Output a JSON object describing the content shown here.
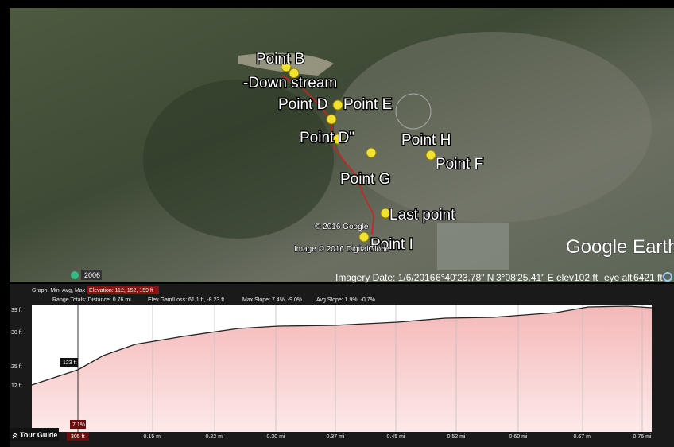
{
  "map": {
    "labels": [
      "Point B",
      "-Down stream",
      "Point D",
      "Point E",
      "Point D\"",
      "Point H",
      "Point F",
      "Point G",
      "Last point",
      "Point I"
    ],
    "copyright_google": "© 2016 Google",
    "copyright_imagery": "Image © 2016 DigitalGlobe",
    "logo": "Google Earth",
    "year": "2006"
  },
  "status_bar": {
    "imagery_date": "Imagery Date: 1/6/2016",
    "latitude": "6°40'23.78\" N",
    "longitude": "3°08'25.41\" E",
    "elev_label": "elev",
    "elev": "102 ft",
    "eye_alt_label": "eye alt",
    "eye_alt": "6421 ft"
  },
  "graph": {
    "header": "Graph: Min, Avg, Max",
    "elevation": "Elevation: 112, 152, 159 ft",
    "range": [
      "Range Totals: Distance: 0.76 mi",
      "Elev Gain/Loss: 61.1 ft, -8.23 ft",
      "Max Slope: 7.4%, -9.0%",
      "Avg Slope: 1.9%, -0.7%"
    ],
    "y_labels": [
      "39 ft",
      "30 ft",
      "25 ft",
      "12 ft"
    ],
    "x_labels": [
      "0.15 mi",
      "0.22 mi",
      "0.30 mi",
      "0.37 mi",
      "0.45 mi",
      "0.52 mi",
      "0.60 mi",
      "0.67 mi",
      "0.76 mi"
    ],
    "cursor": {
      "elevation": "123 ft",
      "slope": "7.1%",
      "distance": "305 ft"
    }
  },
  "tour_guide": "Tour Guide"
}
